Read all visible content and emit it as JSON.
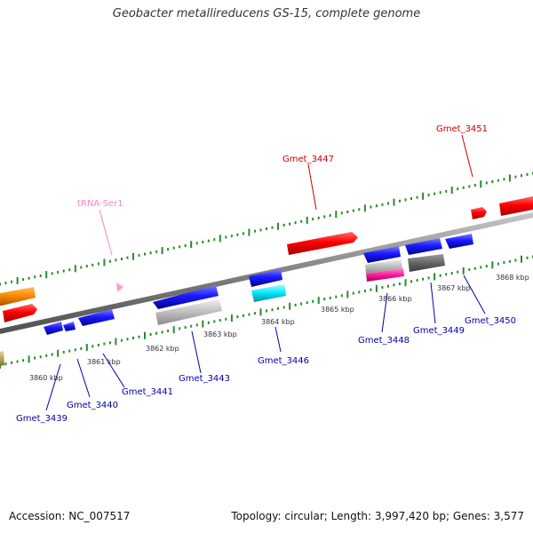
{
  "title": "Geobacter metallireducens GS-15, complete genome",
  "footer": {
    "accession": "Accession: NC_007517",
    "topology": "Topology: circular; Length: 3,997,420 bp; Genes: 3,577"
  },
  "scale": {
    "kbp_labels": [
      "3860 kbp",
      "3861 kbp",
      "3862 kbp",
      "3863 kbp",
      "3864 kbp",
      "3865 kbp",
      "3866 kbp",
      "3867 kbp",
      "3868 kbp"
    ]
  },
  "colors": {
    "backbone": "#808080",
    "red": "#ff0000",
    "blue": "#1a1aff",
    "orange": "#ff8c00",
    "gray": "#b8b8b8",
    "darkgray": "#666666",
    "cyan": "#00e5ff",
    "magenta": "#ff1a9c",
    "olive": "#b8a860",
    "pink": "#ff9ccf",
    "tick": "#2a8a2a",
    "label_blue": "#0000aa",
    "label_red": "#cc0000",
    "label_pink": "#ee88c0"
  },
  "labels": {
    "gmet_3451": "Gmet_3451",
    "gmet_3447": "Gmet_3447",
    "trna_ser1": "tRNA-Ser1",
    "gmet_3439": "Gmet_3439",
    "gmet_3440": "Gmet_3440",
    "gmet_3441": "Gmet_3441",
    "gmet_3443": "Gmet_3443",
    "gmet_3446": "Gmet_3446",
    "gmet_3448": "Gmet_3448",
    "gmet_3449": "Gmet_3449",
    "gmet_3450": "Gmet_3450"
  }
}
